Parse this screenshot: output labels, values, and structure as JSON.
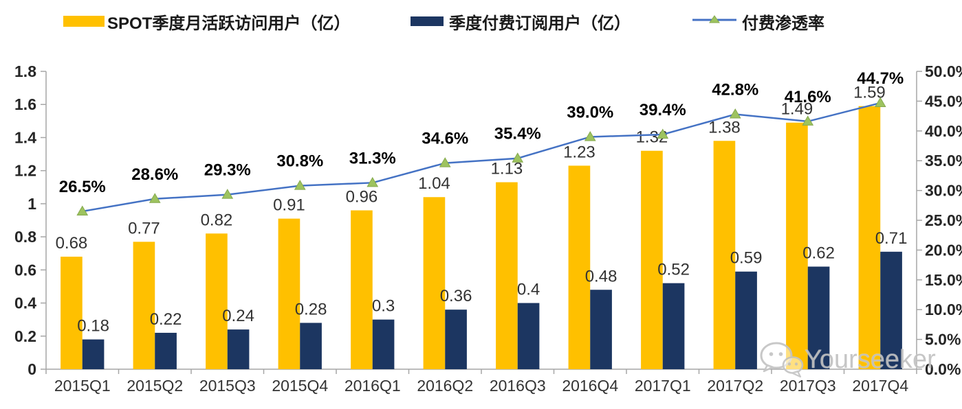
{
  "legend": {
    "items": [
      {
        "label": "SPOT季度月活跃访问用户（亿）",
        "swatch": "bar",
        "color": "#FFC000"
      },
      {
        "label": "季度付费订阅用户（亿）",
        "swatch": "bar",
        "color": "#1C3661"
      },
      {
        "label": "付费渗透率",
        "swatch": "line-triangle-marker",
        "color": "#4472C4",
        "marker_color": "#9DC35F"
      }
    ]
  },
  "chart_data": {
    "type": "bar+line",
    "title": "",
    "categories": [
      "2015Q1",
      "2015Q2",
      "2015Q3",
      "2015Q4",
      "2016Q1",
      "2016Q2",
      "2016Q3",
      "2016Q4",
      "2017Q1",
      "2017Q2",
      "2017Q3",
      "2017Q4"
    ],
    "series": [
      {
        "name": "SPOT季度月活跃访问用户（亿）",
        "type": "bar",
        "axis": "left",
        "color": "#FFC000",
        "values": [
          0.68,
          0.77,
          0.82,
          0.91,
          0.96,
          1.04,
          1.13,
          1.23,
          1.32,
          1.38,
          1.49,
          1.59
        ],
        "labels": [
          "0.68",
          "0.77",
          "0.82",
          "0.91",
          "0.96",
          "1.04",
          "1.13",
          "1.23",
          "1.32",
          "1.38",
          "1.49",
          "1.59"
        ]
      },
      {
        "name": "季度付费订阅用户（亿）",
        "type": "bar",
        "axis": "left",
        "color": "#1C3661",
        "values": [
          0.18,
          0.22,
          0.24,
          0.28,
          0.3,
          0.36,
          0.4,
          0.48,
          0.52,
          0.59,
          0.62,
          0.71
        ],
        "labels": [
          "0.18",
          "0.22",
          "0.24",
          "0.28",
          "0.3",
          "0.36",
          "0.4",
          "0.48",
          "0.52",
          "0.59",
          "0.62",
          "0.71"
        ]
      },
      {
        "name": "付费渗透率",
        "type": "line",
        "axis": "right",
        "color": "#4472C4",
        "marker": "triangle",
        "marker_color": "#9DC35F",
        "values": [
          26.5,
          28.6,
          29.3,
          30.8,
          31.3,
          34.6,
          35.4,
          39.0,
          39.4,
          42.8,
          41.6,
          44.7
        ],
        "labels": [
          "26.5%",
          "28.6%",
          "29.3%",
          "30.8%",
          "31.3%",
          "34.6%",
          "35.4%",
          "39.0%",
          "39.4%",
          "42.8%",
          "41.6%",
          "44.7%"
        ]
      }
    ],
    "left_axis": {
      "min": 0,
      "max": 1.8,
      "step": 0.2,
      "tick_labels": [
        "1.8",
        "1.6",
        "1.4",
        "1.2",
        "1",
        "0.8",
        "0.6",
        "0.4",
        "0.2",
        "0"
      ]
    },
    "right_axis": {
      "min": 0,
      "max": 50,
      "step": 5,
      "tick_labels": [
        "50.0%",
        "45.0%",
        "40.0%",
        "35.0%",
        "30.0%",
        "25.0%",
        "20.0%",
        "15.0%",
        "10.0%",
        "5.0%",
        "0.0%"
      ]
    },
    "grid": false,
    "legend_position": "top"
  },
  "watermark": {
    "icon": "wechat-icon",
    "text": "Yourseeker"
  },
  "colors": {
    "bar_mau": "#FFC000",
    "bar_subs": "#1C3661",
    "line": "#4472C4",
    "marker_fill": "#9DC35F",
    "marker_stroke": "#85A94E",
    "axis": "#A6A6A6",
    "tick_label": "#262626",
    "value_label": "#333333",
    "pct_label": "#000000",
    "x_label": "#333333",
    "watermark": "#C2C2C2"
  }
}
